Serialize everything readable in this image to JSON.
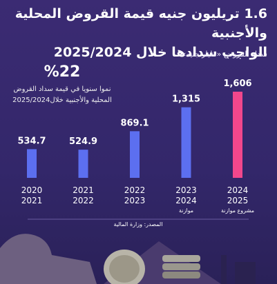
{
  "chart_data": {
    "type": "bar",
    "title": [
      "1.6 تريليون جنيه قيمة القروض المحلية والأجنبية",
      "الواجب سدادها خلال 2025/2024"
    ],
    "subtitle": "سداد القروض «مليار جنيه»",
    "annotation_value": "%22",
    "annotation_text": [
      "نموا سنويا في قيمة سداد القروض",
      "المحلية والأجنبية خلال2025/2024"
    ],
    "categories": [
      [
        "2020",
        "2021"
      ],
      [
        "2021",
        "2022"
      ],
      [
        "2022",
        "2023"
      ],
      [
        "2023",
        "2024"
      ],
      [
        "2024",
        "2025"
      ]
    ],
    "notes": [
      null,
      null,
      null,
      "موازنة",
      "مشروع موازنة"
    ],
    "values": [
      534.7,
      524.9,
      869.1,
      1315,
      1606
    ],
    "value_labels": [
      "534.7",
      "524.9",
      "869.1",
      "1,315",
      "1,606"
    ],
    "colors": [
      "#5c6ff0",
      "#5c6ff0",
      "#5c6ff0",
      "#5c6ff0",
      "#f2478c"
    ],
    "source": "المصدر: وزارة المالية"
  }
}
